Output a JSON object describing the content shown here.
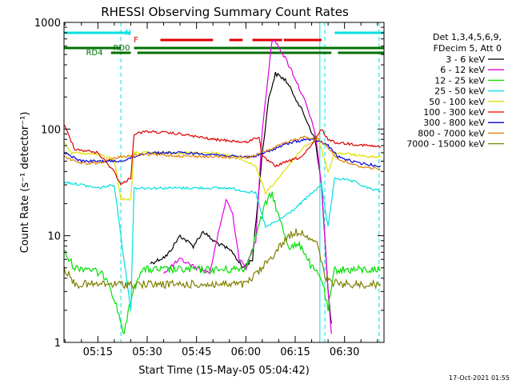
{
  "chart_data": {
    "type": "line",
    "title": "RHESSI Observing Summary Count Rates",
    "xlabel": "Start Time (15-May-05 05:04:42)",
    "ylabel": "Count Rate (s⁻¹ detector⁻¹)",
    "y_scale": "log",
    "ylim": [
      1,
      1000
    ],
    "xlim": [
      "05:04:42",
      "06:42:00"
    ],
    "y_tick_labels": [
      "1",
      "10",
      "100",
      "1000"
    ],
    "x_tick_labels": [
      "05:15",
      "05:30",
      "05:45",
      "06:00",
      "06:15",
      "06:30"
    ],
    "timestamp": "17-Oct-2021 01:55",
    "legend_header": [
      "Det 1,3,4,5,6,9,",
      "FDecim 5, Att 0"
    ],
    "legend_placement": "right",
    "grid": false,
    "flags": [
      {
        "label": "N",
        "color": "#00e0e0",
        "segments": [
          [
            "05:04:42",
            "05:25:00"
          ],
          [
            "06:27:00",
            "06:42:00"
          ]
        ]
      },
      {
        "label": "F",
        "color": "#e00000",
        "segments": [
          [
            "05:34:00",
            "05:50:00"
          ],
          [
            "05:55:00",
            "05:59:00"
          ],
          [
            "06:02:00",
            "06:11:00"
          ],
          [
            "06:11:30",
            "06:23:00"
          ]
        ]
      },
      {
        "label": "RD0",
        "color": "#007000",
        "segments": [
          [
            "05:04:42",
            "05:22:00"
          ],
          [
            "05:26:00",
            "06:42:00"
          ]
        ]
      },
      {
        "label": "RD4",
        "color": "#007000",
        "segments": [
          [
            "05:19:00",
            "05:25:00"
          ],
          [
            "05:27:00",
            "06:26:00"
          ],
          [
            "06:28:00",
            "06:42:00"
          ]
        ]
      }
    ],
    "vlines": [
      {
        "time": "05:22:00",
        "color": "#00e0e0",
        "style": "dashed"
      },
      {
        "time": "06:24:00",
        "color": "#00e0e0",
        "style": "dashed"
      },
      {
        "time": "06:40:30",
        "color": "#00e0e0",
        "style": "dashed"
      },
      {
        "time": "06:22:30",
        "color": "#00e0e0",
        "style": "solid"
      }
    ],
    "series": [
      {
        "name": "3 - 6 keV",
        "color": "#000000",
        "points": [
          [
            "05:31:00",
            5.5
          ],
          [
            "05:36:00",
            6.5
          ],
          [
            "05:40:00",
            10
          ],
          [
            "05:44:00",
            8
          ],
          [
            "05:47:00",
            11
          ],
          [
            "05:50:00",
            9
          ],
          [
            "05:53:00",
            8
          ],
          [
            "05:56:00",
            7
          ],
          [
            "05:59:00",
            5
          ],
          [
            "06:02:00",
            6
          ],
          [
            "06:05:00",
            60
          ],
          [
            "06:07:00",
            200
          ],
          [
            "06:09:00",
            330
          ],
          [
            "06:12:00",
            290
          ],
          [
            "06:15:00",
            200
          ],
          [
            "06:18:00",
            130
          ],
          [
            "06:21:00",
            80
          ],
          [
            "06:23:00",
            30
          ],
          [
            "06:25:00",
            3
          ],
          [
            "06:26:00",
            1.5
          ]
        ]
      },
      {
        "name": "6 - 12 keV",
        "color": "#e000e0",
        "points": [
          [
            "05:35:00",
            4.5
          ],
          [
            "05:40:00",
            6
          ],
          [
            "05:45:00",
            5
          ],
          [
            "05:49:00",
            4.5
          ],
          [
            "05:54:00",
            22
          ],
          [
            "05:56:00",
            16
          ],
          [
            "05:58:00",
            6
          ],
          [
            "06:00:00",
            5
          ],
          [
            "06:03:00",
            9
          ],
          [
            "06:05:00",
            100
          ],
          [
            "06:08:00",
            700
          ],
          [
            "06:10:00",
            600
          ],
          [
            "06:14:00",
            350
          ],
          [
            "06:18:00",
            180
          ],
          [
            "06:21:00",
            95
          ],
          [
            "06:23:00",
            30
          ],
          [
            "06:25:00",
            3
          ],
          [
            "06:26:00",
            1.2
          ]
        ]
      },
      {
        "name": "12 - 25 keV",
        "color": "#00e000",
        "points": [
          [
            "05:04:42",
            7
          ],
          [
            "05:08:00",
            5
          ],
          [
            "05:12:00",
            5
          ],
          [
            "05:18:00",
            4
          ],
          [
            "05:21:00",
            2
          ],
          [
            "05:23:00",
            1.2
          ],
          [
            "05:25:00",
            2.5
          ],
          [
            "05:28:00",
            4.8
          ],
          [
            "05:40:00",
            4.8
          ],
          [
            "05:55:00",
            4.8
          ],
          [
            "06:00:00",
            5
          ],
          [
            "06:03:00",
            10
          ],
          [
            "06:06:00",
            20
          ],
          [
            "06:08:00",
            25
          ],
          [
            "06:10:00",
            15
          ],
          [
            "06:13:00",
            8
          ],
          [
            "06:17:00",
            8
          ],
          [
            "06:20:00",
            5
          ],
          [
            "06:23:00",
            4
          ],
          [
            "06:25:00",
            2
          ],
          [
            "06:27:00",
            4.8
          ],
          [
            "06:35:00",
            4.8
          ],
          [
            "06:41:00",
            4.8
          ]
        ]
      },
      {
        "name": "25 - 50 keV",
        "color": "#00e0e0",
        "points": [
          [
            "05:04:42",
            32
          ],
          [
            "05:10:00",
            30
          ],
          [
            "05:15:00",
            28
          ],
          [
            "05:20:00",
            30
          ],
          [
            "05:22:00",
            10
          ],
          [
            "05:25:00",
            2
          ],
          [
            "05:26:00",
            28
          ],
          [
            "05:32:00",
            28
          ],
          [
            "05:45:00",
            28
          ],
          [
            "05:55:00",
            28
          ],
          [
            "06:03:00",
            25
          ],
          [
            "06:06:00",
            12
          ],
          [
            "06:10:00",
            14
          ],
          [
            "06:15:00",
            18
          ],
          [
            "06:20:00",
            25
          ],
          [
            "06:23:00",
            30
          ],
          [
            "06:25:00",
            12
          ],
          [
            "06:27:00",
            35
          ],
          [
            "06:33:00",
            32
          ],
          [
            "06:37:00",
            28
          ],
          [
            "06:41:00",
            26
          ]
        ]
      },
      {
        "name": "50 - 100 keV",
        "color": "#e0e000",
        "points": [
          [
            "05:04:42",
            75
          ],
          [
            "05:07:00",
            60
          ],
          [
            "05:15:00",
            58
          ],
          [
            "05:20:00",
            52
          ],
          [
            "05:22:00",
            22
          ],
          [
            "05:25:00",
            22
          ],
          [
            "05:26:00",
            60
          ],
          [
            "05:30:00",
            60
          ],
          [
            "05:40:00",
            60
          ],
          [
            "05:50:00",
            60
          ],
          [
            "05:57:00",
            55
          ],
          [
            "06:03:00",
            45
          ],
          [
            "06:06:00",
            25
          ],
          [
            "06:10:00",
            35
          ],
          [
            "06:14:00",
            50
          ],
          [
            "06:18:00",
            70
          ],
          [
            "06:22:00",
            80
          ],
          [
            "06:25:00",
            40
          ],
          [
            "06:27:00",
            60
          ],
          [
            "06:32:00",
            58
          ],
          [
            "06:36:00",
            55
          ],
          [
            "06:41:00",
            55
          ]
        ]
      },
      {
        "name": "100 - 300 keV",
        "color": "#e00000",
        "points": [
          [
            "05:04:42",
            110
          ],
          [
            "05:08:00",
            65
          ],
          [
            "05:15:00",
            60
          ],
          [
            "05:20:00",
            40
          ],
          [
            "05:22:00",
            30
          ],
          [
            "05:25:00",
            35
          ],
          [
            "05:26:00",
            90
          ],
          [
            "05:30:00",
            95
          ],
          [
            "05:40:00",
            90
          ],
          [
            "05:50:00",
            80
          ],
          [
            "05:55:00",
            78
          ],
          [
            "06:00:00",
            75
          ],
          [
            "06:04:00",
            85
          ],
          [
            "06:05:00",
            55
          ],
          [
            "06:09:00",
            45
          ],
          [
            "06:13:00",
            50
          ],
          [
            "06:17:00",
            55
          ],
          [
            "06:20:00",
            70
          ],
          [
            "06:23:00",
            100
          ],
          [
            "06:25:00",
            80
          ],
          [
            "06:27:00",
            75
          ],
          [
            "06:33:00",
            72
          ],
          [
            "06:41:00",
            68
          ]
        ]
      },
      {
        "name": "300 - 800 keV",
        "color": "#0000e0",
        "points": [
          [
            "05:04:42",
            60
          ],
          [
            "05:10:00",
            50
          ],
          [
            "05:15:00",
            50
          ],
          [
            "05:20:00",
            50
          ],
          [
            "05:22:00",
            50
          ],
          [
            "05:26:00",
            55
          ],
          [
            "05:30:00",
            60
          ],
          [
            "05:40:00",
            60
          ],
          [
            "05:50:00",
            58
          ],
          [
            "05:57:00",
            55
          ],
          [
            "06:02:00",
            55
          ],
          [
            "06:06:00",
            60
          ],
          [
            "06:10:00",
            68
          ],
          [
            "06:14:00",
            75
          ],
          [
            "06:18:00",
            80
          ],
          [
            "06:22:00",
            78
          ],
          [
            "06:25:00",
            70
          ],
          [
            "06:28:00",
            55
          ],
          [
            "06:34:00",
            48
          ],
          [
            "06:41:00",
            45
          ]
        ]
      },
      {
        "name": "800 - 7000 keV",
        "color": "#e08000",
        "points": [
          [
            "05:04:42",
            55
          ],
          [
            "05:10:00",
            48
          ],
          [
            "05:15:00",
            48
          ],
          [
            "05:22:00",
            55
          ],
          [
            "05:30:00",
            58
          ],
          [
            "05:40:00",
            56
          ],
          [
            "05:50:00",
            55
          ],
          [
            "05:57:00",
            54
          ],
          [
            "06:02:00",
            55
          ],
          [
            "06:06:00",
            62
          ],
          [
            "06:10:00",
            70
          ],
          [
            "06:14:00",
            78
          ],
          [
            "06:18:00",
            85
          ],
          [
            "06:22:00",
            80
          ],
          [
            "06:25:00",
            68
          ],
          [
            "06:28:00",
            52
          ],
          [
            "06:34:00",
            45
          ],
          [
            "06:41:00",
            42
          ]
        ]
      },
      {
        "name": "7000 - 15000 keV",
        "color": "#808000",
        "points": [
          [
            "05:04:42",
            5
          ],
          [
            "05:08:00",
            3.5
          ],
          [
            "05:15:00",
            3.5
          ],
          [
            "05:22:00",
            3.5
          ],
          [
            "05:30:00",
            3.5
          ],
          [
            "05:45:00",
            3.5
          ],
          [
            "05:55:00",
            3.5
          ],
          [
            "06:00:00",
            3.5
          ],
          [
            "06:05:00",
            5
          ],
          [
            "06:09:00",
            7
          ],
          [
            "06:13:00",
            10
          ],
          [
            "06:16:00",
            11
          ],
          [
            "06:19:00",
            10
          ],
          [
            "06:22:00",
            8
          ],
          [
            "06:24:00",
            4
          ],
          [
            "06:28:00",
            3.5
          ],
          [
            "06:35:00",
            3.5
          ],
          [
            "06:41:00",
            3.5
          ]
        ]
      }
    ]
  }
}
